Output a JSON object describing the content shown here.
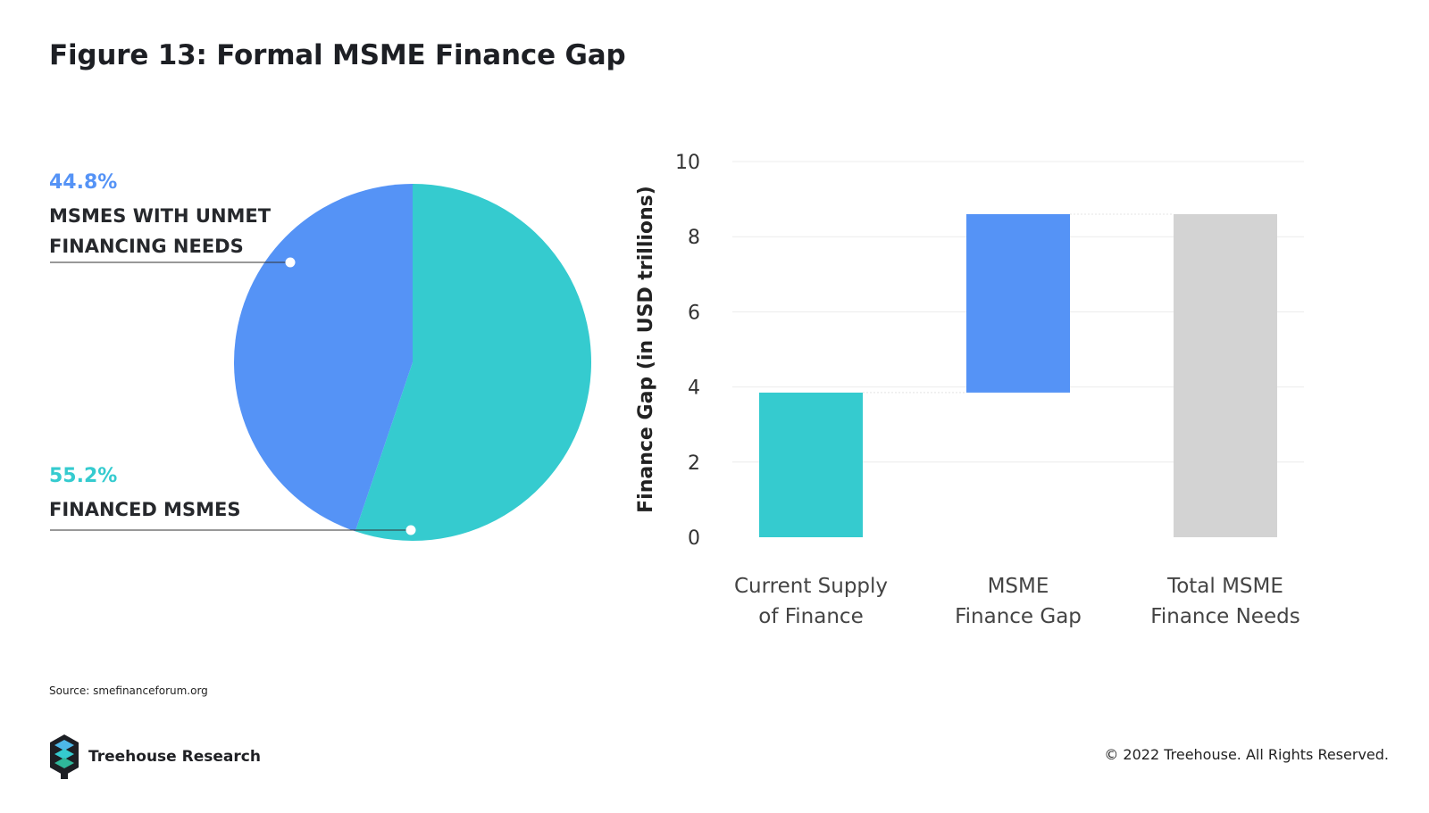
{
  "title": "Figure 13: Formal MSME Finance Gap",
  "colors": {
    "blue": "#5593f6",
    "teal": "#35cbcf",
    "gray": "#d3d3d3",
    "dark": "#1d1f24"
  },
  "pie": {
    "slices": [
      {
        "pct_label": "44.8%",
        "label": "MSMES WITH UNMET FINANCING NEEDS",
        "value": 44.8,
        "color": "#5593f6"
      },
      {
        "pct_label": "55.2%",
        "label": "FINANCED MSMES",
        "value": 55.2,
        "color": "#35cbcf"
      }
    ]
  },
  "chart_data": [
    {
      "type": "pie",
      "values": [
        44.8,
        55.2
      ],
      "labels": [
        "MSMES WITH UNMET FINANCING NEEDS",
        "FINANCED MSMES"
      ]
    },
    {
      "type": "bar",
      "subtype": "waterfall",
      "categories": [
        "Current Supply of Finance",
        "MSME Finance Gap",
        "Total MSME Finance Needs"
      ],
      "category_lines": [
        [
          "Current Supply",
          "of Finance"
        ],
        [
          "MSME",
          "Finance Gap"
        ],
        [
          "Total MSME",
          "Finance Needs"
        ]
      ],
      "bars": [
        {
          "start": 0,
          "end": 3.85,
          "color": "#35cbcf"
        },
        {
          "start": 3.85,
          "end": 8.6,
          "color": "#5593f6"
        },
        {
          "start": 0,
          "end": 8.6,
          "color": "#d3d3d3"
        }
      ],
      "ylabel": "Finance Gap (in USD trillions)",
      "ylim": [
        0,
        10
      ],
      "yticks": [
        0,
        2,
        4,
        6,
        8,
        10
      ],
      "grid": true
    }
  ],
  "source": "Source: smefinanceforum.org",
  "brand": "Treehouse Research",
  "copyright": "© 2022 Treehouse. All Rights Reserved."
}
